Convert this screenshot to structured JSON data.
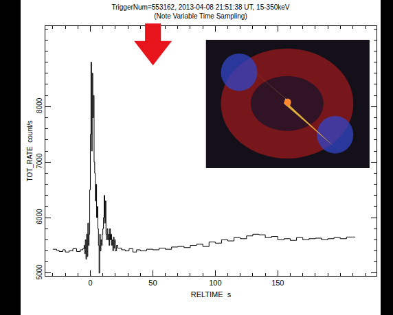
{
  "chart_data": {
    "type": "line",
    "title": "TriggerNum=553162, 2013-04-08 21:51:38 UT, 15-350keV",
    "subtitle": "(Note Variable Time Sampling)",
    "x_label": "RELTIME  s",
    "y_label": "TOT_RATE  count/s",
    "x": [
      -30,
      -27,
      -25,
      -22,
      -20,
      -17,
      -14,
      -11,
      -8,
      -6,
      -5,
      -4.5,
      -4,
      -3.5,
      -3,
      -2.5,
      -2,
      -1.5,
      -1,
      -0.5,
      0,
      0.5,
      1,
      1.5,
      2,
      2.5,
      3,
      3.5,
      4,
      4.5,
      5,
      5.5,
      6,
      6.5,
      7,
      7.5,
      8,
      8.5,
      9,
      9.5,
      10,
      10.5,
      11,
      11.5,
      12,
      12.5,
      13,
      13.5,
      14,
      14.5,
      15,
      15.5,
      16,
      16.5,
      17,
      17.5,
      18,
      18.5,
      19,
      19.5,
      20,
      21,
      22,
      25,
      28,
      31,
      34,
      37,
      40,
      45,
      50,
      55,
      60,
      65,
      70,
      75,
      80,
      85,
      90,
      95,
      100,
      105,
      110,
      115,
      120,
      125,
      130,
      135,
      140,
      145,
      150,
      155,
      160,
      165,
      170,
      175,
      180,
      185,
      190,
      195,
      200,
      205,
      210,
      212
    ],
    "values": [
      5430,
      5410,
      5390,
      5420,
      5380,
      5400,
      5440,
      5390,
      5420,
      5440,
      5500,
      5350,
      5600,
      5250,
      5700,
      5300,
      5900,
      5500,
      5700,
      6500,
      7500,
      8800,
      7200,
      8600,
      7800,
      8200,
      7000,
      6800,
      6300,
      6600,
      6000,
      6200,
      5800,
      5500,
      5000,
      5700,
      5400,
      5600,
      5500,
      5700,
      5800,
      6000,
      6400,
      5900,
      6300,
      5700,
      5600,
      5800,
      5600,
      5700,
      5500,
      5800,
      5600,
      5700,
      5500,
      5600,
      5400,
      5650,
      5450,
      5600,
      5400,
      5500,
      5450,
      5420,
      5400,
      5440,
      5380,
      5420,
      5400,
      5430,
      5420,
      5450,
      5430,
      5470,
      5480,
      5460,
      5500,
      5520,
      5480,
      5560,
      5540,
      5600,
      5580,
      5640,
      5620,
      5670,
      5700,
      5690,
      5640,
      5660,
      5600,
      5620,
      5590,
      5640,
      5600,
      5620,
      5630,
      5600,
      5620,
      5640,
      5620,
      5650,
      5650,
      5650
    ],
    "color": "#000000",
    "line_style": "steps",
    "xlim": [
      -36,
      229
    ],
    "xticks": [
      0,
      50,
      100,
      150
    ],
    "ylim": [
      4950,
      9450
    ],
    "yticks": [
      5000,
      6000,
      7000,
      8000
    ],
    "grid": false
  }
}
